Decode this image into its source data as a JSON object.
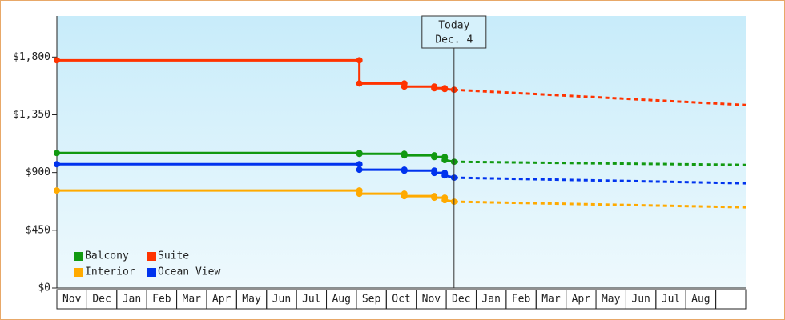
{
  "chart_data": {
    "type": "line",
    "categories": [
      "Nov",
      "Dec",
      "Jan",
      "Feb",
      "Mar",
      "Apr",
      "May",
      "Jun",
      "Jul",
      "Aug",
      "Sep",
      "Oct",
      "Nov",
      "Dec",
      "Jan",
      "Feb",
      "Mar",
      "Apr",
      "May",
      "Jun",
      "Jul",
      "Aug",
      null
    ],
    "xlim": [
      0,
      23
    ],
    "ylim": [
      0,
      2120
    ],
    "yticks": [
      {
        "value": 0,
        "label": "$0"
      },
      {
        "value": 450,
        "label": "$450"
      },
      {
        "value": 900,
        "label": "$900"
      },
      {
        "value": 1350,
        "label": "$1,350"
      },
      {
        "value": 1800,
        "label": "$1,800"
      }
    ],
    "x": [
      0,
      10.1,
      10.1,
      11.6,
      11.6,
      12.6,
      12.6,
      12.95,
      12.95,
      13.26
    ],
    "forecast_x": [
      13.26,
      23
    ],
    "series": [
      {
        "name": "Balcony",
        "color": "#119911",
        "values": [
          1052,
          1052,
          1046,
          1046,
          1034,
          1034,
          1021,
          1021,
          997,
          984
        ],
        "forecast": [
          984,
          959
        ]
      },
      {
        "name": "Suite",
        "color": "#ff3300",
        "values": [
          1775,
          1775,
          1594,
          1594,
          1570,
          1570,
          1557,
          1557,
          1551,
          1545
        ],
        "forecast": [
          1545,
          1426
        ]
      },
      {
        "name": "Interior",
        "color": "#ffaa00",
        "values": [
          760,
          760,
          735,
          735,
          716,
          716,
          704,
          704,
          685,
          673
        ],
        "forecast": [
          673,
          629
        ]
      },
      {
        "name": "Ocean View",
        "color": "#0033ee",
        "values": [
          965,
          965,
          922,
          922,
          915,
          915,
          897,
          897,
          878,
          860
        ],
        "forecast": [
          860,
          816
        ]
      }
    ],
    "annotation": {
      "x": 13.26,
      "lines": [
        "Today",
        "Dec. 4"
      ]
    }
  }
}
